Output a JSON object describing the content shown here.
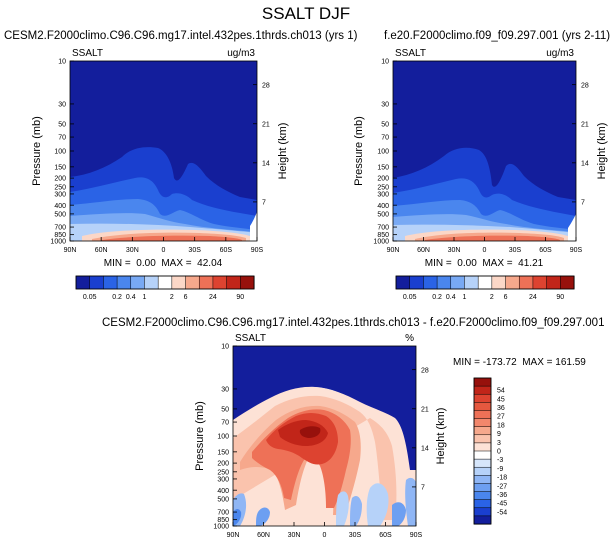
{
  "main_title": "SSALT DJF",
  "colors": {
    "bg_field": "#0a1f9e",
    "seq_scale": [
      "#131e9c",
      "#1a3fcf",
      "#2a63e6",
      "#4a86ee",
      "#78a9f4",
      "#b6d2f9",
      "#ffffff",
      "#fbd7c7",
      "#f6a88c",
      "#ee7157",
      "#dd4330",
      "#c12519",
      "#97110c"
    ],
    "diff_scale": [
      "#131e9c",
      "#1a3fcf",
      "#2a63e6",
      "#4a86ee",
      "#6d9ff1",
      "#8fb6f5",
      "#b6d2f9",
      "#d6e6fb",
      "#ffffff",
      "#fde2d6",
      "#fac3ad",
      "#f6a88c",
      "#f2876c",
      "#ee7157",
      "#e5583f",
      "#dd4330",
      "#c12519",
      "#97110c"
    ]
  },
  "chart_data": [
    {
      "type": "contour",
      "title": "CESM2.F2000climo.C96.C96.mg17.intel.432pes.1thrds.ch013 (yrs 1)",
      "variable": "SSALT",
      "units": "ug/m3",
      "ylabel": "Pressure (mb)",
      "y2label": "Height (km)",
      "x_ticks": [
        "90N",
        "60N",
        "30N",
        "0",
        "30S",
        "60S",
        "90S"
      ],
      "y_ticks": [
        10,
        30,
        50,
        70,
        100,
        150,
        200,
        250,
        300,
        400,
        500,
        700,
        850,
        1000
      ],
      "y2_ticks": [
        28,
        21,
        14,
        7
      ],
      "stats": "MIN =  0.00  MAX =  42.04",
      "min": 0.0,
      "max": 42.04,
      "colorbar_labels": [
        "0.05",
        "0.2",
        "0.4",
        "1",
        "2",
        "6",
        "24",
        "90"
      ]
    },
    {
      "type": "contour",
      "title": "f.e20.F2000climo.f09_f09.297.001 (yrs 2-11)",
      "variable": "SSALT",
      "units": "ug/m3",
      "ylabel": "Pressure (mb)",
      "y2label": "Height (km)",
      "x_ticks": [
        "90N",
        "60N",
        "30N",
        "0",
        "30S",
        "60S",
        "90S"
      ],
      "y_ticks": [
        10,
        30,
        50,
        70,
        100,
        150,
        200,
        250,
        300,
        400,
        500,
        700,
        850,
        1000
      ],
      "y2_ticks": [
        28,
        21,
        14,
        7
      ],
      "stats": "MIN =  0.00  MAX =  41.21",
      "min": 0.0,
      "max": 41.21,
      "colorbar_labels": [
        "0.05",
        "0.2",
        "0.4",
        "1",
        "2",
        "6",
        "24",
        "90"
      ]
    },
    {
      "type": "contour",
      "title": "CESM2.F2000climo.C96.C96.mg17.intel.432pes.1thrds.ch013 - f.e20.F2000climo.f09_f09.297.001",
      "variable": "SSALT",
      "units": "%",
      "ylabel": "Pressure (mb)",
      "y2label": "Height (km)",
      "x_ticks": [
        "90N",
        "60N",
        "30N",
        "0",
        "30S",
        "60S",
        "90S"
      ],
      "y_ticks": [
        10,
        30,
        50,
        70,
        100,
        150,
        200,
        250,
        300,
        400,
        500,
        700,
        850,
        1000
      ],
      "y2_ticks": [
        28,
        21,
        14,
        7
      ],
      "stats": "MIN = -173.72  MAX = 161.59",
      "min": -173.72,
      "max": 161.59,
      "colorbar_labels": [
        "54",
        "45",
        "36",
        "27",
        "18",
        "9",
        "3",
        "0",
        "-3",
        "-9",
        "-18",
        "-27",
        "-36",
        "-45",
        "-54"
      ]
    }
  ]
}
